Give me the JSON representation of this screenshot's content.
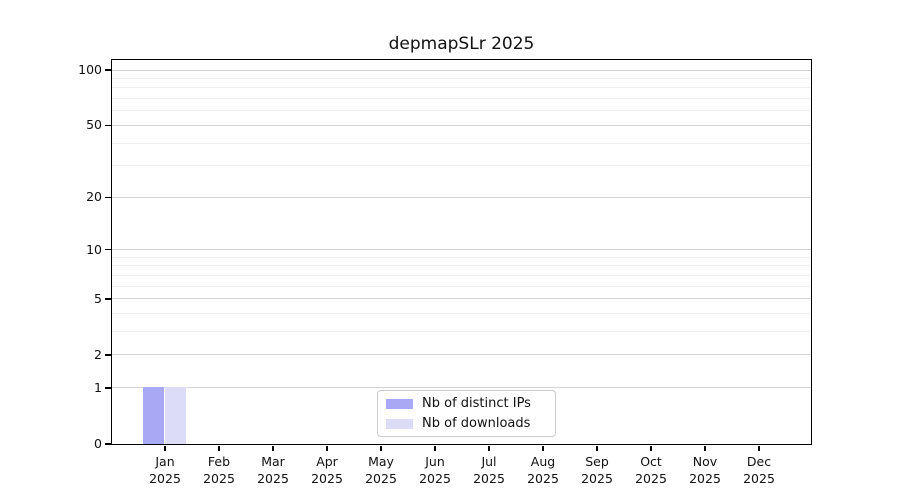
{
  "chart_data": {
    "type": "bar",
    "title": "depmapSLr 2025",
    "x_categories_line1": [
      "Jan",
      "Feb",
      "Mar",
      "Apr",
      "May",
      "Jun",
      "Jul",
      "Aug",
      "Sep",
      "Oct",
      "Nov",
      "Dec"
    ],
    "x_categories_line2": "2025",
    "series": [
      {
        "name": "Nb of distinct IPs",
        "color": "#a8a8f4",
        "values": [
          1,
          0,
          0,
          0,
          0,
          0,
          0,
          0,
          0,
          0,
          0,
          0
        ]
      },
      {
        "name": "Nb of downloads",
        "color": "#dcdcf8",
        "values": [
          1,
          0,
          0,
          0,
          0,
          0,
          0,
          0,
          0,
          0,
          0,
          0
        ]
      }
    ],
    "y_axis": {
      "scale": "log10(1+v)",
      "major_ticks": [
        0,
        1,
        2,
        5,
        10,
        20,
        50,
        100
      ],
      "minor_gridlines": [
        3,
        4,
        6,
        7,
        8,
        9,
        30,
        40,
        60,
        70,
        80,
        90
      ],
      "vmax": 113.3,
      "ylim": [
        0,
        113.3
      ]
    },
    "grid": "horizontal",
    "legend_position": "lower center",
    "colors": {
      "grid_major": "#d4d4d4",
      "grid_minor": "#f0f0f0",
      "axis": "#000000",
      "legend_border": "#cccccc",
      "background": "#ffffff"
    }
  }
}
